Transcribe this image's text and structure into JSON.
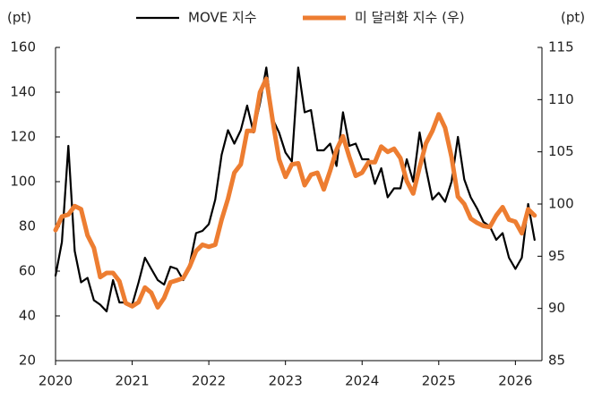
{
  "chart_data": {
    "type": "line",
    "y_label": "(pt)",
    "y2_label": "(pt)",
    "categories": [
      "2020",
      null,
      null,
      null,
      null,
      null,
      null,
      null,
      null,
      null,
      null,
      null,
      "2021",
      null,
      null,
      null,
      null,
      null,
      null,
      null,
      null,
      null,
      null,
      null,
      "2022",
      null,
      null,
      null,
      null,
      null,
      null,
      null,
      null,
      null,
      null,
      null,
      "2023",
      null,
      null,
      null,
      null,
      null,
      null,
      null,
      null,
      null,
      null,
      null,
      "2024",
      null,
      null,
      null,
      null,
      null,
      null,
      null,
      null,
      null,
      null,
      null,
      "2025",
      null,
      null,
      null,
      null,
      null,
      null,
      null,
      null,
      null,
      null,
      null,
      "2026",
      null,
      null,
      null
    ],
    "series": [
      {
        "name": "MOVE 지수",
        "color": "#000000",
        "width": 2.2,
        "values": [
          58,
          73,
          116,
          69,
          55,
          57,
          47,
          45,
          42,
          56,
          46,
          46,
          45,
          55,
          66,
          61,
          56,
          54,
          62,
          61,
          56,
          63,
          77,
          78,
          81,
          92,
          112,
          123,
          117,
          123,
          134,
          122,
          135,
          151,
          128,
          122,
          113,
          109,
          151,
          131,
          132,
          114,
          114,
          117,
          107,
          131,
          116,
          117,
          110,
          110,
          99,
          106,
          93,
          97,
          97,
          110,
          100,
          122,
          106,
          92,
          95,
          91,
          100,
          120,
          101,
          93,
          88,
          82,
          80,
          74,
          77,
          66,
          61,
          66,
          90,
          74
        ]
      },
      {
        "name": "미 달러화 지수 (우)",
        "color": "#ED7D31",
        "width": 5,
        "axis": "y2",
        "values": [
          97.5,
          98.8,
          99.0,
          99.8,
          99.5,
          97,
          95.8,
          93,
          93.4,
          93.4,
          92.6,
          90.5,
          90.2,
          90.6,
          92,
          91.5,
          90.1,
          91,
          92.5,
          92.7,
          92.9,
          94,
          95.5,
          96.1,
          95.9,
          96.1,
          98.5,
          100.5,
          103,
          103.8,
          107,
          107,
          110.7,
          112,
          108,
          104.3,
          102.6,
          103.8,
          103.9,
          101.8,
          102.8,
          103,
          101.4,
          103.2,
          105.2,
          106.5,
          104.5,
          102.7,
          103,
          104,
          104,
          105.5,
          105,
          105.3,
          104.4,
          102.2,
          101,
          103.5,
          105.8,
          107,
          108.6,
          107.3,
          104.5,
          100.7,
          100,
          98.6,
          98.2,
          97.9,
          97.8,
          98.9,
          99.7,
          98.5,
          98.3,
          97.2,
          99.5,
          98.9
        ]
      }
    ],
    "ylim": [
      20,
      160
    ],
    "yticks": [
      20,
      40,
      60,
      80,
      100,
      120,
      140,
      160
    ],
    "y2lim": [
      85,
      115
    ],
    "y2ticks": [
      85,
      90,
      95,
      100,
      105,
      110,
      115
    ]
  }
}
